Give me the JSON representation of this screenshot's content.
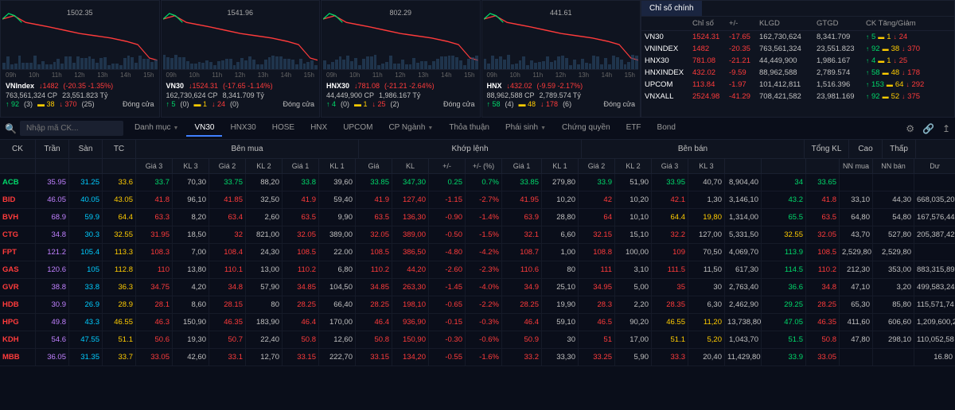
{
  "charts": [
    {
      "name": "VNIndex",
      "value": "1482",
      "change": "(-20.35 -1.35%)",
      "line2a": "763,561,324 CP",
      "line2b": "23,551.823 Tỷ",
      "up": "92",
      "upn": "(3)",
      "neu": "38",
      "dn": "370",
      "dnn": "(25)",
      "status": "Đóng cửa",
      "label": "1502.35",
      "color": "#ff3b3b"
    },
    {
      "name": "VN30",
      "value": "1524.31",
      "change": "(-17.65 -1.14%)",
      "line2a": "162,730,624 CP",
      "line2b": "8,341.709 Tỷ",
      "up": "5",
      "upn": "(0)",
      "neu": "1",
      "dn": "24",
      "dnn": "(0)",
      "status": "Đóng cửa",
      "label": "1541.96",
      "color": "#ff3b3b"
    },
    {
      "name": "HNX30",
      "value": "781.08",
      "change": "(-21.21 -2.64%)",
      "line2a": "44,449,900 CP",
      "line2b": "1,986.167 Tỷ",
      "up": "4",
      "upn": "(0)",
      "neu": "1",
      "dn": "25",
      "dnn": "(2)",
      "status": "Đóng cửa",
      "label": "802.29",
      "color": "#ff3b3b"
    },
    {
      "name": "HNX",
      "value": "432.02",
      "change": "(-9.59 -2.17%)",
      "line2a": "88,962,588 CP",
      "line2b": "2,789.574 Tỷ",
      "up": "58",
      "upn": "(4)",
      "neu": "48",
      "dn": "178",
      "dnn": "(6)",
      "status": "Đóng cửa",
      "label": "441.61",
      "color": "#ff3b3b"
    }
  ],
  "timeAxis": [
    "09h",
    "10h",
    "11h",
    "12h",
    "13h",
    "14h",
    "15h"
  ],
  "indicesPanel": {
    "tab": "Chỉ số chính",
    "headers": [
      "Chỉ số",
      "+/-",
      "KLGD",
      "GTGD",
      "CK Tăng/Giảm"
    ],
    "rows": [
      {
        "n": "VN30",
        "v": "1524.31",
        "c": "-17.65",
        "kl": "162,730,624",
        "gt": "8,341.709",
        "up": "5",
        "neu": "1",
        "dn": "24"
      },
      {
        "n": "VNINDEX",
        "v": "1482",
        "c": "-20.35",
        "kl": "763,561,324",
        "gt": "23,551.823",
        "up": "92",
        "neu": "38",
        "dn": "370"
      },
      {
        "n": "HNX30",
        "v": "781.08",
        "c": "-21.21",
        "kl": "44,449,900",
        "gt": "1,986.167",
        "up": "4",
        "neu": "1",
        "dn": "25"
      },
      {
        "n": "HNXINDEX",
        "v": "432.02",
        "c": "-9.59",
        "kl": "88,962,588",
        "gt": "2,789.574",
        "up": "58",
        "neu": "48",
        "dn": "178"
      },
      {
        "n": "UPCOM",
        "v": "113.84",
        "c": "-1.97",
        "kl": "101,412,811",
        "gt": "1,516.396",
        "up": "153",
        "neu": "64",
        "dn": "292"
      },
      {
        "n": "VNXALL",
        "v": "2524.98",
        "c": "-41.29",
        "kl": "708,421,582",
        "gt": "23,981.169",
        "up": "92",
        "neu": "52",
        "dn": "375"
      }
    ]
  },
  "searchPlaceholder": "Nhập mã CK...",
  "tabs": [
    "Danh mục",
    "VN30",
    "HNX30",
    "HOSE",
    "HNX",
    "UPCOM",
    "CP Ngành",
    "Thỏa thuận",
    "Phái sinh",
    "Chứng quyền",
    "ETF",
    "Bond"
  ],
  "activeTab": 1,
  "tabDropdown": [
    0,
    6,
    8
  ],
  "mainHeaders": {
    "row1": [
      "CK",
      "Trần",
      "Sàn",
      "TC",
      "Bên mua",
      "Khớp lệnh",
      "Bên bán",
      "Tổng KL",
      "Cao",
      "Thấp",
      "ĐTNN"
    ],
    "row2": [
      "",
      "",
      "",
      "",
      "Giá 3",
      "KL 3",
      "Giá 2",
      "KL 2",
      "Giá 1",
      "KL 1",
      "Giá",
      "KL",
      "+/-",
      "+/- (%)",
      "Giá 1",
      "KL 1",
      "Giá 2",
      "KL 2",
      "Giá 3",
      "KL 3",
      "",
      "",
      "",
      "NN mua",
      "NN bán",
      "Dư"
    ]
  },
  "rows": [
    {
      "ck": "ACB",
      "tran": "35.95",
      "san": "31.25",
      "tc": "33.6",
      "g3": "33.7",
      "k3": "70,30",
      "g2": "33.75",
      "k2": "88,20",
      "g1": "33.8",
      "k1": "39,60",
      "gia": "33.85",
      "kl": "347,30",
      "pm": "0.25",
      "pct": "0.7%",
      "bg1": "33.85",
      "bk1": "279,80",
      "bg2": "33.9",
      "bk2": "51,90",
      "bg3": "33.95",
      "bk3": "40,70",
      "tkl": "8,904,40",
      "cao": "34",
      "thap": "33.65",
      "nnm": "",
      "nnb": "",
      "du": "",
      "cls": [
        "green",
        "purple",
        "cyan",
        "yellow",
        "green",
        "",
        "green",
        "",
        "green",
        "",
        "green",
        "green",
        "green",
        "green",
        "green",
        "",
        "green",
        "",
        "green",
        "",
        "",
        "green",
        "green",
        "",
        "",
        ""
      ]
    },
    {
      "ck": "BID",
      "tran": "46.05",
      "san": "40.05",
      "tc": "43.05",
      "g3": "41.8",
      "k3": "96,10",
      "g2": "41.85",
      "k2": "32,50",
      "g1": "41.9",
      "k1": "59,40",
      "gia": "41.9",
      "kl": "127,40",
      "pm": "-1.15",
      "pct": "-2.7%",
      "bg1": "41.95",
      "bk1": "10,20",
      "bg2": "42",
      "bk2": "10,20",
      "bg3": "42.1",
      "bk3": "1,30",
      "tkl": "3,146,10",
      "cao": "43.2",
      "thap": "41.8",
      "nnm": "33,10",
      "nnb": "44,30",
      "du": "668,035,20",
      "cls": [
        "red",
        "purple",
        "cyan",
        "yellow",
        "red",
        "",
        "red",
        "",
        "red",
        "",
        "red",
        "red",
        "red",
        "red",
        "red",
        "",
        "red",
        "",
        "red",
        "",
        "",
        "green",
        "red",
        "",
        "",
        ""
      ]
    },
    {
      "ck": "BVH",
      "tran": "68.9",
      "san": "59.9",
      "tc": "64.4",
      "g3": "63.3",
      "k3": "8,20",
      "g2": "63.4",
      "k2": "2,60",
      "g1": "63.5",
      "k1": "9,90",
      "gia": "63.5",
      "kl": "136,30",
      "pm": "-0.90",
      "pct": "-1.4%",
      "bg1": "63.9",
      "bk1": "28,80",
      "bg2": "64",
      "bk2": "10,10",
      "bg3": "64.4",
      "bk3": "19,80",
      "tkl": "1,314,00",
      "cao": "65.5",
      "thap": "63.5",
      "nnm": "64,80",
      "nnb": "54,80",
      "du": "167,576,44",
      "cls": [
        "red",
        "purple",
        "cyan",
        "yellow",
        "red",
        "",
        "red",
        "",
        "red",
        "",
        "red",
        "red",
        "red",
        "red",
        "red",
        "",
        "red",
        "",
        "yellow",
        "yellow",
        "",
        "green",
        "red",
        "",
        "",
        ""
      ]
    },
    {
      "ck": "CTG",
      "tran": "34.8",
      "san": "30.3",
      "tc": "32.55",
      "g3": "31.95",
      "k3": "18,50",
      "g2": "32",
      "k2": "821,00",
      "g1": "32.05",
      "k1": "389,00",
      "gia": "32.05",
      "kl": "389,00",
      "pm": "-0.50",
      "pct": "-1.5%",
      "bg1": "32.1",
      "bk1": "6,60",
      "bg2": "32.15",
      "bk2": "15,10",
      "bg3": "32.2",
      "bk3": "127,00",
      "tkl": "5,331,50",
      "cao": "32.55",
      "thap": "32.05",
      "nnm": "43,70",
      "nnb": "527,80",
      "du": "205,387,42",
      "cls": [
        "red",
        "purple",
        "cyan",
        "yellow",
        "red",
        "",
        "red",
        "",
        "red",
        "",
        "red",
        "red",
        "red",
        "red",
        "red",
        "",
        "red",
        "",
        "red",
        "",
        "",
        "yellow",
        "red",
        "",
        "",
        ""
      ]
    },
    {
      "ck": "FPT",
      "tran": "121.2",
      "san": "105.4",
      "tc": "113.3",
      "g3": "108.3",
      "k3": "7,00",
      "g2": "108.4",
      "k2": "24,30",
      "g1": "108.5",
      "k1": "22.00",
      "gia": "108.5",
      "kl": "386,50",
      "pm": "-4.80",
      "pct": "-4.2%",
      "bg1": "108.7",
      "bk1": "1,00",
      "bg2": "108.8",
      "bk2": "100,00",
      "bg3": "109",
      "bk3": "70,50",
      "tkl": "4,069,70",
      "cao": "113.9",
      "thap": "108.5",
      "nnm": "2,529,80",
      "nnb": "2,529,80",
      "du": "",
      "cls": [
        "red",
        "purple",
        "cyan",
        "yellow",
        "red",
        "",
        "red",
        "",
        "red",
        "",
        "red",
        "red",
        "red",
        "red",
        "red",
        "",
        "red",
        "",
        "red",
        "",
        "",
        "green",
        "red",
        "",
        "",
        ""
      ]
    },
    {
      "ck": "GAS",
      "tran": "120.6",
      "san": "105",
      "tc": "112.8",
      "g3": "110",
      "k3": "13,80",
      "g2": "110.1",
      "k2": "13,00",
      "g1": "110.2",
      "k1": "6,80",
      "gia": "110.2",
      "kl": "44,20",
      "pm": "-2.60",
      "pct": "-2.3%",
      "bg1": "110.6",
      "bk1": "80",
      "bg2": "111",
      "bk2": "3,10",
      "bg3": "111.5",
      "bk3": "11,50",
      "tkl": "617,30",
      "cao": "114.5",
      "thap": "110.2",
      "nnm": "212,30",
      "nnb": "353,00",
      "du": "883,315,89",
      "cls": [
        "red",
        "purple",
        "cyan",
        "yellow",
        "red",
        "",
        "red",
        "",
        "red",
        "",
        "red",
        "red",
        "red",
        "red",
        "red",
        "",
        "red",
        "",
        "red",
        "",
        "",
        "green",
        "red",
        "",
        "",
        ""
      ]
    },
    {
      "ck": "GVR",
      "tran": "38.8",
      "san": "33.8",
      "tc": "36.3",
      "g3": "34.75",
      "k3": "4,20",
      "g2": "34.8",
      "k2": "57,90",
      "g1": "34.85",
      "k1": "104,50",
      "gia": "34.85",
      "kl": "263,30",
      "pm": "-1.45",
      "pct": "-4.0%",
      "bg1": "34.9",
      "bk1": "25,10",
      "bg2": "34.95",
      "bk2": "5,00",
      "bg3": "35",
      "bk3": "30",
      "tkl": "2,763,40",
      "cao": "36.6",
      "thap": "34.8",
      "nnm": "47,10",
      "nnb": "3,20",
      "du": "499,583,24",
      "cls": [
        "red",
        "purple",
        "cyan",
        "yellow",
        "red",
        "",
        "red",
        "",
        "red",
        "",
        "red",
        "red",
        "red",
        "red",
        "red",
        "",
        "red",
        "",
        "red",
        "",
        "",
        "green",
        "red",
        "",
        "",
        ""
      ]
    },
    {
      "ck": "HDB",
      "tran": "30.9",
      "san": "26.9",
      "tc": "28.9",
      "g3": "28.1",
      "k3": "8,60",
      "g2": "28.15",
      "k2": "80",
      "g1": "28.25",
      "k1": "66,40",
      "gia": "28.25",
      "kl": "198,10",
      "pm": "-0.65",
      "pct": "-2.2%",
      "bg1": "28.25",
      "bk1": "19,90",
      "bg2": "28.3",
      "bk2": "2,20",
      "bg3": "28.35",
      "bk3": "6,30",
      "tkl": "2,462,90",
      "cao": "29.25",
      "thap": "28.25",
      "nnm": "65,30",
      "nnb": "85,80",
      "du": "115,571,74",
      "cls": [
        "red",
        "purple",
        "cyan",
        "yellow",
        "red",
        "",
        "red",
        "",
        "red",
        "",
        "red",
        "red",
        "red",
        "red",
        "red",
        "",
        "red",
        "",
        "red",
        "",
        "",
        "green",
        "red",
        "",
        "",
        ""
      ]
    },
    {
      "ck": "HPG",
      "tran": "49.8",
      "san": "43.3",
      "tc": "46.55",
      "g3": "46.3",
      "k3": "150,90",
      "g2": "46.35",
      "k2": "183,90",
      "g1": "46.4",
      "k1": "170,00",
      "gia": "46.4",
      "kl": "936,90",
      "pm": "-0.15",
      "pct": "-0.3%",
      "bg1": "46.4",
      "bk1": "59,10",
      "bg2": "46.5",
      "bk2": "90,20",
      "bg3": "46.55",
      "bk3": "11,20",
      "tkl": "13,738,80",
      "cao": "47.05",
      "thap": "46.35",
      "nnm": "411,60",
      "nnb": "606,60",
      "du": "1,209,600,28",
      "cls": [
        "red",
        "purple",
        "cyan",
        "yellow",
        "red",
        "",
        "red",
        "",
        "red",
        "",
        "red",
        "red",
        "red",
        "red",
        "red",
        "",
        "red",
        "",
        "yellow",
        "yellow",
        "",
        "green",
        "red",
        "",
        "",
        ""
      ]
    },
    {
      "ck": "KDH",
      "tran": "54.6",
      "san": "47.55",
      "tc": "51.1",
      "g3": "50.6",
      "k3": "19,30",
      "g2": "50.7",
      "k2": "22,40",
      "g1": "50.8",
      "k1": "12,60",
      "gia": "50.8",
      "kl": "150,90",
      "pm": "-0.30",
      "pct": "-0.6%",
      "bg1": "50.9",
      "bk1": "30",
      "bg2": "51",
      "bk2": "17,00",
      "bg3": "51.1",
      "bk3": "5,20",
      "tkl": "1,043,70",
      "cao": "51.5",
      "thap": "50.8",
      "nnm": "47,80",
      "nnb": "298,10",
      "du": "110,052,58",
      "cls": [
        "red",
        "purple",
        "cyan",
        "yellow",
        "red",
        "",
        "red",
        "",
        "red",
        "",
        "red",
        "red",
        "red",
        "red",
        "red",
        "",
        "red",
        "",
        "yellow",
        "yellow",
        "",
        "green",
        "red",
        "",
        "",
        ""
      ]
    },
    {
      "ck": "MBB",
      "tran": "36.05",
      "san": "31.35",
      "tc": "33.7",
      "g3": "33.05",
      "k3": "42,60",
      "g2": "33.1",
      "k2": "12,70",
      "g1": "33.15",
      "k1": "222,70",
      "gia": "33.15",
      "kl": "134,20",
      "pm": "-0.55",
      "pct": "-1.6%",
      "bg1": "33.2",
      "bk1": "33,30",
      "bg2": "33.25",
      "bk2": "5,90",
      "bg3": "33.3",
      "bk3": "20,40",
      "tkl": "11,429,80",
      "cao": "33.9",
      "thap": "33.05",
      "nnm": "",
      "nnb": "",
      "du": "16.80",
      "cls": [
        "red",
        "purple",
        "cyan",
        "yellow",
        "red",
        "",
        "red",
        "",
        "red",
        "",
        "red",
        "red",
        "red",
        "red",
        "red",
        "",
        "red",
        "",
        "red",
        "",
        "",
        "green",
        "red",
        "",
        "",
        ""
      ]
    }
  ]
}
